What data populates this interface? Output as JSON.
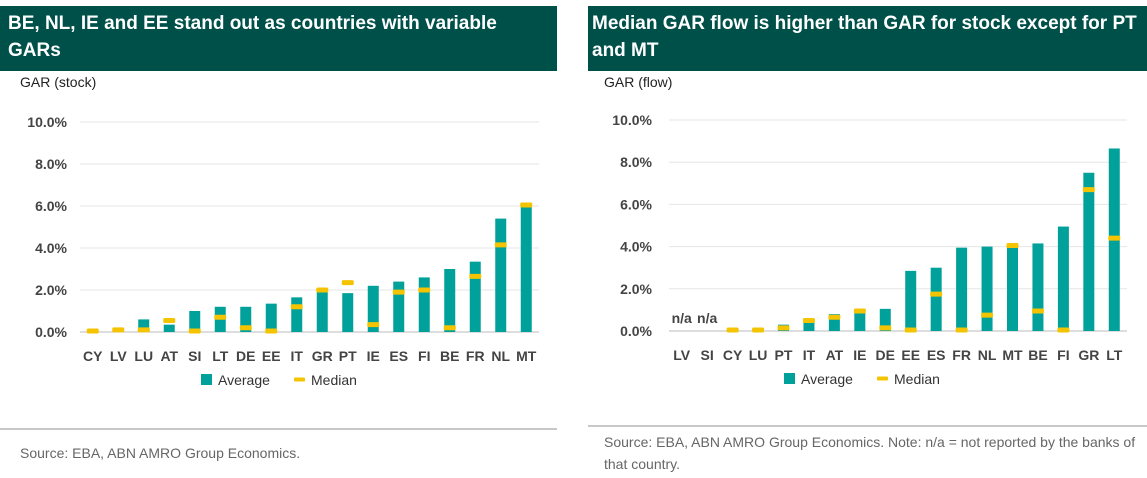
{
  "left": {
    "title": "BE, NL, IE and EE stand out as countries with variable GARs",
    "source": "Source: EBA, ABN AMRO Group Economics."
  },
  "right": {
    "title": "Median GAR flow is higher than GAR for stock except for PT and MT",
    "source": "Source: EBA, ABN AMRO Group Economics. Note: n/a = not reported by the banks of that country."
  },
  "colors": {
    "average": "#00a19a",
    "median": "#f5c400",
    "title_bg": "#00504a"
  },
  "chart_data": [
    {
      "type": "bar",
      "ylabel": "GAR (stock)",
      "ylim": [
        0,
        10
      ],
      "yticks": [
        "0.0%",
        "2.0%",
        "4.0%",
        "6.0%",
        "8.0%",
        "10.0%"
      ],
      "categories": [
        "CY",
        "LV",
        "LU",
        "AT",
        "SI",
        "LT",
        "DE",
        "EE",
        "IT",
        "GR",
        "PT",
        "IE",
        "ES",
        "FI",
        "BE",
        "FR",
        "NL",
        "MT"
      ],
      "series": [
        {
          "name": "Average",
          "values": [
            0.05,
            0.1,
            0.6,
            0.35,
            1.0,
            1.2,
            1.2,
            1.35,
            1.65,
            1.9,
            1.85,
            2.2,
            2.4,
            2.6,
            3.0,
            3.35,
            5.4,
            6.0
          ]
        },
        {
          "name": "Median",
          "values": [
            0.05,
            0.1,
            0.1,
            0.55,
            0.05,
            0.7,
            0.2,
            0.05,
            1.2,
            2.0,
            2.35,
            0.35,
            1.9,
            2.0,
            0.2,
            2.65,
            4.15,
            6.05
          ]
        }
      ],
      "legend": [
        "Average",
        "Median"
      ],
      "legend_position": "bottom"
    },
    {
      "type": "bar",
      "ylabel": "GAR (flow)",
      "ylim": [
        0,
        10
      ],
      "yticks": [
        "0.0%",
        "2.0%",
        "4.0%",
        "6.0%",
        "8.0%",
        "10.0%"
      ],
      "categories": [
        "LV",
        "SI",
        "CY",
        "LU",
        "PT",
        "IT",
        "AT",
        "IE",
        "DE",
        "EE",
        "ES",
        "FR",
        "NL",
        "MT",
        "BE",
        "FI",
        "GR",
        "LT"
      ],
      "series": [
        {
          "name": "Average",
          "values": [
            null,
            null,
            0.05,
            0.05,
            0.3,
            0.45,
            0.8,
            0.95,
            1.05,
            2.85,
            3.0,
            3.95,
            4.0,
            4.0,
            4.15,
            4.95,
            7.5,
            8.65
          ]
        },
        {
          "name": "Median",
          "values": [
            null,
            null,
            0.05,
            0.05,
            0.15,
            0.5,
            0.65,
            0.95,
            0.15,
            0.05,
            1.75,
            0.05,
            0.75,
            4.05,
            0.95,
            0.05,
            6.7,
            4.4
          ]
        }
      ],
      "na_labels": [
        "n/a",
        "n/a"
      ],
      "legend": [
        "Average",
        "Median"
      ],
      "legend_position": "bottom"
    }
  ]
}
